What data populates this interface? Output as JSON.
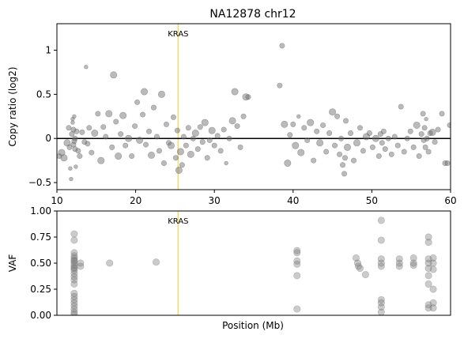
{
  "chart_data": [
    {
      "type": "scatter",
      "title": "NA12878 chr12",
      "xlabel": "",
      "ylabel": "Copy ratio (log2)",
      "xlim": [
        10,
        60
      ],
      "ylim": [
        -0.58,
        1.3
      ],
      "x_ticks": [
        10,
        20,
        30,
        40,
        50,
        60
      ],
      "y_ticks": [
        -0.5,
        0.0,
        0.5,
        1.0
      ],
      "reference_line": {
        "y": 0,
        "color": "#000000"
      },
      "marker": {
        "label": "KRAS",
        "x": 25.4,
        "color": "#f5e04a"
      },
      "point_color": "#666666",
      "points": [
        {
          "x": 10.3,
          "y": -0.2,
          "s": 1
        },
        {
          "x": 10.6,
          "y": -0.16,
          "s": 2
        },
        {
          "x": 10.9,
          "y": -0.22,
          "s": 2
        },
        {
          "x": 11.3,
          "y": -0.05,
          "s": 2
        },
        {
          "x": 11.5,
          "y": 0.12,
          "s": 1
        },
        {
          "x": 11.6,
          "y": -0.1,
          "s": 1
        },
        {
          "x": 11.7,
          "y": -0.34,
          "s": 0
        },
        {
          "x": 11.8,
          "y": -0.46,
          "s": 0
        },
        {
          "x": 11.9,
          "y": 0.05,
          "s": 1
        },
        {
          "x": 12.0,
          "y": 0.22,
          "s": 0
        },
        {
          "x": 12.0,
          "y": 0.18,
          "s": 0
        },
        {
          "x": 12.1,
          "y": -0.07,
          "s": 1
        },
        {
          "x": 12.1,
          "y": 0.1,
          "s": 1
        },
        {
          "x": 12.2,
          "y": -0.03,
          "s": 1
        },
        {
          "x": 12.2,
          "y": 0.25,
          "s": 0
        },
        {
          "x": 12.3,
          "y": -0.12,
          "s": 1
        },
        {
          "x": 12.3,
          "y": 0.0,
          "s": 1
        },
        {
          "x": 12.4,
          "y": -0.32,
          "s": 0
        },
        {
          "x": 12.5,
          "y": 0.08,
          "s": 1
        },
        {
          "x": 12.7,
          "y": -0.14,
          "s": 1
        },
        {
          "x": 12.9,
          "y": -0.2,
          "s": 1
        },
        {
          "x": 13.2,
          "y": 0.07,
          "s": 1
        },
        {
          "x": 13.5,
          "y": -0.04,
          "s": 1
        },
        {
          "x": 13.7,
          "y": 0.81,
          "s": 0
        },
        {
          "x": 13.9,
          "y": -0.06,
          "s": 1
        },
        {
          "x": 14.1,
          "y": 0.12,
          "s": 1
        },
        {
          "x": 14.4,
          "y": -0.16,
          "s": 1
        },
        {
          "x": 14.8,
          "y": 0.06,
          "s": 2
        },
        {
          "x": 15.2,
          "y": 0.28,
          "s": 1
        },
        {
          "x": 15.6,
          "y": -0.25,
          "s": 2
        },
        {
          "x": 15.9,
          "y": 0.13,
          "s": 1
        },
        {
          "x": 16.2,
          "y": 0.02,
          "s": 1
        },
        {
          "x": 16.6,
          "y": 0.28,
          "s": 2
        },
        {
          "x": 17.0,
          "y": -0.1,
          "s": 1
        },
        {
          "x": 17.2,
          "y": 0.72,
          "s": 2
        },
        {
          "x": 17.5,
          "y": 0.19,
          "s": 1
        },
        {
          "x": 17.8,
          "y": -0.2,
          "s": 2
        },
        {
          "x": 18.1,
          "y": 0.05,
          "s": 1
        },
        {
          "x": 18.4,
          "y": 0.26,
          "s": 2
        },
        {
          "x": 18.7,
          "y": -0.08,
          "s": 1
        },
        {
          "x": 19.1,
          "y": 0.0,
          "s": 2
        },
        {
          "x": 19.5,
          "y": -0.2,
          "s": 1
        },
        {
          "x": 19.9,
          "y": 0.14,
          "s": 1
        },
        {
          "x": 20.2,
          "y": 0.41,
          "s": 1
        },
        {
          "x": 20.5,
          "y": -0.02,
          "s": 2
        },
        {
          "x": 20.9,
          "y": 0.27,
          "s": 1
        },
        {
          "x": 21.1,
          "y": 0.53,
          "s": 2
        },
        {
          "x": 21.3,
          "y": -0.07,
          "s": 1
        },
        {
          "x": 21.7,
          "y": 0.08,
          "s": 1
        },
        {
          "x": 22.0,
          "y": -0.19,
          "s": 2
        },
        {
          "x": 22.3,
          "y": 0.35,
          "s": 1
        },
        {
          "x": 22.7,
          "y": 0.02,
          "s": 1
        },
        {
          "x": 23.0,
          "y": -0.14,
          "s": 1
        },
        {
          "x": 23.3,
          "y": 0.5,
          "s": 2
        },
        {
          "x": 23.6,
          "y": -0.28,
          "s": 1
        },
        {
          "x": 23.9,
          "y": 0.16,
          "s": 1
        },
        {
          "x": 24.2,
          "y": -0.05,
          "s": 1
        },
        {
          "x": 24.5,
          "y": -0.08,
          "s": 2
        },
        {
          "x": 24.8,
          "y": 0.24,
          "s": 1
        },
        {
          "x": 25.1,
          "y": -0.22,
          "s": 1
        },
        {
          "x": 25.3,
          "y": 0.09,
          "s": 1
        },
        {
          "x": 25.5,
          "y": -0.36,
          "s": 2
        },
        {
          "x": 25.7,
          "y": -0.15,
          "s": 2
        },
        {
          "x": 25.9,
          "y": -0.3,
          "s": 1
        },
        {
          "x": 26.1,
          "y": 0.02,
          "s": 1
        },
        {
          "x": 26.4,
          "y": -0.08,
          "s": 1
        },
        {
          "x": 26.7,
          "y": 0.12,
          "s": 1
        },
        {
          "x": 27.0,
          "y": -0.18,
          "s": 2
        },
        {
          "x": 27.3,
          "y": 0.0,
          "s": 1
        },
        {
          "x": 27.6,
          "y": 0.06,
          "s": 2
        },
        {
          "x": 27.9,
          "y": -0.12,
          "s": 1
        },
        {
          "x": 28.2,
          "y": 0.13,
          "s": 1
        },
        {
          "x": 28.5,
          "y": -0.04,
          "s": 1
        },
        {
          "x": 28.8,
          "y": 0.18,
          "s": 2
        },
        {
          "x": 29.1,
          "y": -0.22,
          "s": 1
        },
        {
          "x": 29.4,
          "y": -0.02,
          "s": 1
        },
        {
          "x": 29.7,
          "y": 0.09,
          "s": 2
        },
        {
          "x": 30.0,
          "y": -0.08,
          "s": 1
        },
        {
          "x": 30.4,
          "y": 0.03,
          "s": 1
        },
        {
          "x": 30.8,
          "y": -0.14,
          "s": 1
        },
        {
          "x": 31.2,
          "y": 0.1,
          "s": 1
        },
        {
          "x": 31.5,
          "y": -0.28,
          "s": 0
        },
        {
          "x": 31.9,
          "y": 0.0,
          "s": 1
        },
        {
          "x": 32.3,
          "y": 0.2,
          "s": 2
        },
        {
          "x": 32.6,
          "y": 0.53,
          "s": 2
        },
        {
          "x": 32.9,
          "y": 0.14,
          "s": 1
        },
        {
          "x": 33.3,
          "y": -0.1,
          "s": 1
        },
        {
          "x": 33.7,
          "y": 0.25,
          "s": 1
        },
        {
          "x": 34.0,
          "y": 0.47,
          "s": 2
        },
        {
          "x": 34.3,
          "y": 0.47,
          "s": 1
        },
        {
          "x": 38.3,
          "y": 0.6,
          "s": 1
        },
        {
          "x": 38.6,
          "y": 1.05,
          "s": 1
        },
        {
          "x": 38.9,
          "y": 0.16,
          "s": 2
        },
        {
          "x": 39.3,
          "y": -0.28,
          "s": 2
        },
        {
          "x": 39.6,
          "y": 0.04,
          "s": 1
        },
        {
          "x": 40.0,
          "y": 0.16,
          "s": 1
        },
        {
          "x": 40.3,
          "y": -0.08,
          "s": 2
        },
        {
          "x": 40.7,
          "y": 0.25,
          "s": 0
        },
        {
          "x": 41.0,
          "y": -0.16,
          "s": 2
        },
        {
          "x": 41.4,
          "y": 0.12,
          "s": 1
        },
        {
          "x": 41.8,
          "y": -0.02,
          "s": 1
        },
        {
          "x": 42.2,
          "y": 0.18,
          "s": 2
        },
        {
          "x": 42.6,
          "y": -0.25,
          "s": 1
        },
        {
          "x": 43.0,
          "y": 0.08,
          "s": 1
        },
        {
          "x": 43.4,
          "y": -0.05,
          "s": 2
        },
        {
          "x": 43.8,
          "y": 0.15,
          "s": 1
        },
        {
          "x": 44.2,
          "y": -0.15,
          "s": 1
        },
        {
          "x": 44.6,
          "y": 0.06,
          "s": 1
        },
        {
          "x": 45.0,
          "y": 0.3,
          "s": 2
        },
        {
          "x": 45.3,
          "y": -0.08,
          "s": 1
        },
        {
          "x": 45.6,
          "y": 0.25,
          "s": 1
        },
        {
          "x": 45.9,
          "y": -0.18,
          "s": 1
        },
        {
          "x": 46.1,
          "y": 0.0,
          "s": 1
        },
        {
          "x": 46.3,
          "y": -0.3,
          "s": 1
        },
        {
          "x": 46.5,
          "y": -0.4,
          "s": 1
        },
        {
          "x": 46.6,
          "y": -0.22,
          "s": 1
        },
        {
          "x": 46.7,
          "y": 0.2,
          "s": 1
        },
        {
          "x": 46.9,
          "y": -0.1,
          "s": 2
        },
        {
          "x": 47.3,
          "y": 0.06,
          "s": 1
        },
        {
          "x": 47.7,
          "y": -0.25,
          "s": 1
        },
        {
          "x": 48.1,
          "y": -0.05,
          "s": 2
        },
        {
          "x": 48.5,
          "y": 0.12,
          "s": 1
        },
        {
          "x": 48.9,
          "y": -0.14,
          "s": 1
        },
        {
          "x": 49.3,
          "y": 0.02,
          "s": 2
        },
        {
          "x": 49.7,
          "y": 0.06,
          "s": 1
        },
        {
          "x": 50.1,
          "y": -0.1,
          "s": 1
        },
        {
          "x": 50.5,
          "y": 0.0,
          "s": 2
        },
        {
          "x": 50.9,
          "y": -0.2,
          "s": 1
        },
        {
          "x": 51.1,
          "y": 0.05,
          "s": 1
        },
        {
          "x": 51.3,
          "y": -0.05,
          "s": 1
        },
        {
          "x": 51.5,
          "y": 0.08,
          "s": 1
        },
        {
          "x": 51.7,
          "y": -0.12,
          "s": 1
        },
        {
          "x": 52.1,
          "y": 0.0,
          "s": 1
        },
        {
          "x": 52.5,
          "y": -0.18,
          "s": 1
        },
        {
          "x": 52.9,
          "y": 0.02,
          "s": 1
        },
        {
          "x": 53.3,
          "y": -0.08,
          "s": 1
        },
        {
          "x": 53.7,
          "y": 0.36,
          "s": 1
        },
        {
          "x": 54.1,
          "y": -0.15,
          "s": 1
        },
        {
          "x": 54.5,
          "y": 0.0,
          "s": 1
        },
        {
          "x": 54.9,
          "y": 0.08,
          "s": 1
        },
        {
          "x": 55.3,
          "y": -0.1,
          "s": 1
        },
        {
          "x": 55.7,
          "y": 0.15,
          "s": 2
        },
        {
          "x": 56.0,
          "y": -0.2,
          "s": 1
        },
        {
          "x": 56.3,
          "y": 0.05,
          "s": 1
        },
        {
          "x": 56.5,
          "y": 0.28,
          "s": 1
        },
        {
          "x": 56.6,
          "y": -0.02,
          "s": 1
        },
        {
          "x": 56.7,
          "y": 0.12,
          "s": 1
        },
        {
          "x": 56.8,
          "y": -0.1,
          "s": 1
        },
        {
          "x": 56.9,
          "y": 0.22,
          "s": 0
        },
        {
          "x": 57.0,
          "y": 0.0,
          "s": 1
        },
        {
          "x": 57.2,
          "y": -0.15,
          "s": 1
        },
        {
          "x": 57.4,
          "y": 0.06,
          "s": 1
        },
        {
          "x": 57.7,
          "y": 0.07,
          "s": 2
        },
        {
          "x": 58.0,
          "y": -0.04,
          "s": 1
        },
        {
          "x": 58.4,
          "y": 0.1,
          "s": 1
        },
        {
          "x": 58.9,
          "y": 0.28,
          "s": 1
        },
        {
          "x": 59.3,
          "y": -0.28,
          "s": 1
        },
        {
          "x": 59.6,
          "y": -0.28,
          "s": 1
        },
        {
          "x": 59.9,
          "y": 0.15,
          "s": 1
        }
      ]
    },
    {
      "type": "scatter",
      "title": "",
      "xlabel": "Position (Mb)",
      "ylabel": "VAF",
      "xlim": [
        10,
        60
      ],
      "ylim": [
        0,
        1
      ],
      "y_ticks": [
        0.0,
        0.25,
        0.5,
        0.75,
        1.0
      ],
      "y_tick_labels": [
        "0.00",
        "0.25",
        "0.50",
        "0.75",
        "1.00"
      ],
      "marker": {
        "label": "KRAS",
        "x": 25.4,
        "color": "#f5e04a"
      },
      "point_color": "#777777",
      "points": [
        {
          "x": 12.2,
          "y": 0.78
        },
        {
          "x": 12.2,
          "y": 0.72
        },
        {
          "x": 12.2,
          "y": 0.6
        },
        {
          "x": 12.2,
          "y": 0.57
        },
        {
          "x": 12.2,
          "y": 0.55
        },
        {
          "x": 12.2,
          "y": 0.53
        },
        {
          "x": 12.2,
          "y": 0.52
        },
        {
          "x": 12.2,
          "y": 0.5
        },
        {
          "x": 12.2,
          "y": 0.48
        },
        {
          "x": 12.2,
          "y": 0.46
        },
        {
          "x": 12.2,
          "y": 0.45
        },
        {
          "x": 12.2,
          "y": 0.43
        },
        {
          "x": 12.2,
          "y": 0.4
        },
        {
          "x": 12.2,
          "y": 0.37
        },
        {
          "x": 12.2,
          "y": 0.34
        },
        {
          "x": 12.2,
          "y": 0.3
        },
        {
          "x": 12.2,
          "y": 0.21
        },
        {
          "x": 12.2,
          "y": 0.18
        },
        {
          "x": 12.2,
          "y": 0.15
        },
        {
          "x": 12.2,
          "y": 0.12
        },
        {
          "x": 12.2,
          "y": 0.09
        },
        {
          "x": 12.2,
          "y": 0.06
        },
        {
          "x": 12.2,
          "y": 0.03
        },
        {
          "x": 12.2,
          "y": 0.01
        },
        {
          "x": 13.0,
          "y": 0.47
        },
        {
          "x": 13.0,
          "y": 0.5
        },
        {
          "x": 16.7,
          "y": 0.5
        },
        {
          "x": 22.6,
          "y": 0.51
        },
        {
          "x": 40.5,
          "y": 0.62
        },
        {
          "x": 40.5,
          "y": 0.6
        },
        {
          "x": 40.5,
          "y": 0.52
        },
        {
          "x": 40.5,
          "y": 0.49
        },
        {
          "x": 40.5,
          "y": 0.38
        },
        {
          "x": 40.5,
          "y": 0.06
        },
        {
          "x": 48.0,
          "y": 0.55
        },
        {
          "x": 48.2,
          "y": 0.5
        },
        {
          "x": 48.3,
          "y": 0.47
        },
        {
          "x": 48.5,
          "y": 0.45
        },
        {
          "x": 49.2,
          "y": 0.39
        },
        {
          "x": 51.2,
          "y": 0.91
        },
        {
          "x": 51.2,
          "y": 0.72
        },
        {
          "x": 51.2,
          "y": 0.54
        },
        {
          "x": 51.2,
          "y": 0.5
        },
        {
          "x": 51.2,
          "y": 0.47
        },
        {
          "x": 51.2,
          "y": 0.15
        },
        {
          "x": 51.2,
          "y": 0.12
        },
        {
          "x": 51.2,
          "y": 0.08
        },
        {
          "x": 51.2,
          "y": 0.03
        },
        {
          "x": 53.5,
          "y": 0.54
        },
        {
          "x": 53.5,
          "y": 0.5
        },
        {
          "x": 53.5,
          "y": 0.47
        },
        {
          "x": 55.3,
          "y": 0.55
        },
        {
          "x": 55.3,
          "y": 0.5
        },
        {
          "x": 55.3,
          "y": 0.48
        },
        {
          "x": 57.2,
          "y": 0.75
        },
        {
          "x": 57.2,
          "y": 0.7
        },
        {
          "x": 57.2,
          "y": 0.54
        },
        {
          "x": 57.2,
          "y": 0.5
        },
        {
          "x": 57.2,
          "y": 0.45
        },
        {
          "x": 57.2,
          "y": 0.38
        },
        {
          "x": 57.2,
          "y": 0.3
        },
        {
          "x": 57.2,
          "y": 0.1
        },
        {
          "x": 57.2,
          "y": 0.07
        },
        {
          "x": 57.8,
          "y": 0.55
        },
        {
          "x": 57.8,
          "y": 0.5
        },
        {
          "x": 57.8,
          "y": 0.44
        },
        {
          "x": 57.8,
          "y": 0.25
        },
        {
          "x": 57.8,
          "y": 0.12
        },
        {
          "x": 57.8,
          "y": 0.07
        }
      ]
    }
  ]
}
